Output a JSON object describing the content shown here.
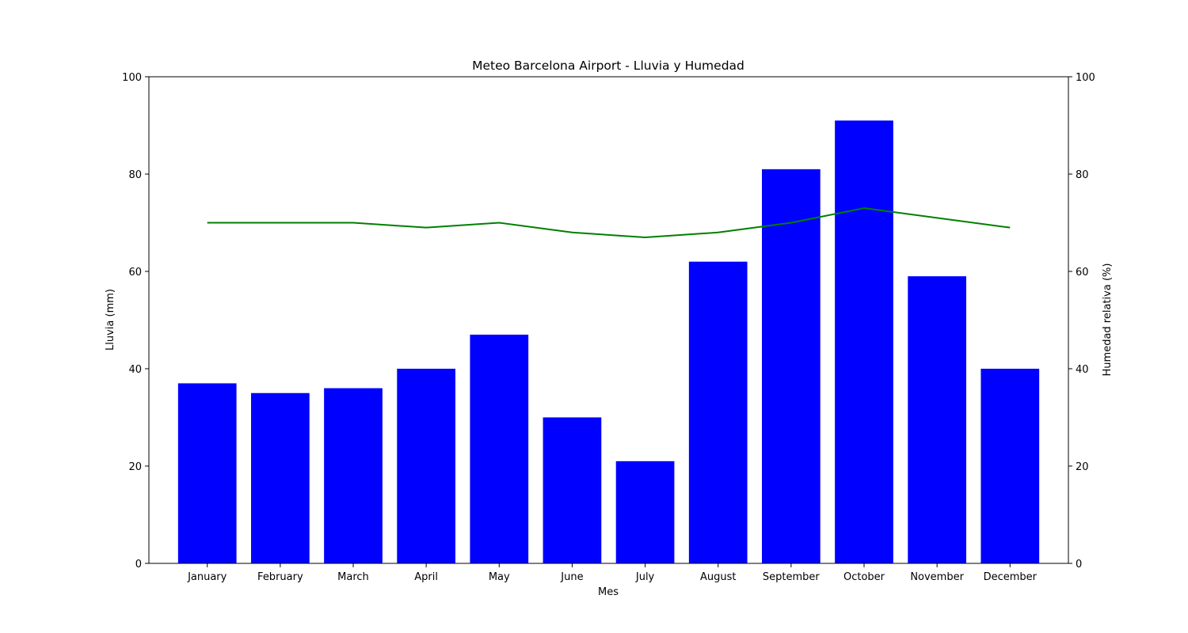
{
  "chart_data": {
    "type": "bar",
    "title": "Meteo Barcelona Airport - Lluvia y Humedad",
    "xlabel": "Mes",
    "ylabel": "Lluvia (mm)",
    "y2label": "Humedad relativa (%)",
    "categories": [
      "January",
      "February",
      "March",
      "April",
      "May",
      "June",
      "July",
      "August",
      "September",
      "October",
      "November",
      "December"
    ],
    "ylim": [
      0,
      100
    ],
    "y2lim": [
      0,
      100
    ],
    "yticks": [
      "0",
      "20",
      "40",
      "60",
      "80",
      "100"
    ],
    "y2ticks": [
      "0",
      "20",
      "40",
      "60",
      "80",
      "100"
    ],
    "series": [
      {
        "type": "bar",
        "axis": "left",
        "color": "#0000ff",
        "values": [
          37,
          35,
          36,
          40,
          47,
          30,
          21,
          62,
          81,
          91,
          59,
          40
        ]
      },
      {
        "type": "line",
        "axis": "right",
        "color": "#008000",
        "values": [
          70,
          70,
          70,
          69,
          70,
          68,
          67,
          68,
          70,
          73,
          71,
          69
        ]
      }
    ],
    "grid": false,
    "legend": "none"
  }
}
